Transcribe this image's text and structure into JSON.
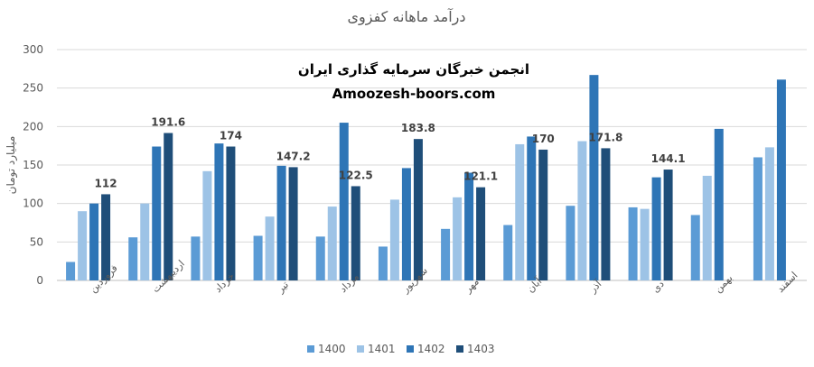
{
  "chart_data": {
    "type": "bar",
    "title": "درآمد ماهانه کفزوی",
    "ylabel": "میلیارد تومان",
    "ylim": [
      0,
      300
    ],
    "yticks": [
      0,
      50,
      100,
      150,
      200,
      250,
      300
    ],
    "grid": true,
    "legend_position": "bottom",
    "categories": [
      "فروردین",
      "اردیبهشت",
      "خرداد",
      "تیر",
      "مرداد",
      "شهریور",
      "مهر",
      "آبان",
      "آذر",
      "دی",
      "بهمن",
      "اسفند"
    ],
    "series": [
      {
        "name": "1400",
        "color": "#5b9bd5",
        "values": [
          24,
          56,
          57,
          58,
          57,
          44,
          67,
          72,
          97,
          95,
          85,
          160
        ]
      },
      {
        "name": "1401",
        "color": "#9dc3e6",
        "values": [
          90,
          100,
          142,
          83,
          96,
          105,
          108,
          177,
          181,
          93,
          136,
          173
        ]
      },
      {
        "name": "1402",
        "color": "#2e75b6",
        "values": [
          100,
          174,
          178,
          149,
          205,
          146,
          140,
          187,
          267,
          134,
          197,
          261
        ]
      },
      {
        "name": "1403",
        "color": "#1f4e79",
        "values": [
          112,
          191.6,
          174,
          147.2,
          122.5,
          183.8,
          121.1,
          170,
          171.8,
          144.1,
          null,
          null
        ]
      }
    ],
    "data_labels": [
      "112",
      "191.6",
      "174",
      "147.2",
      "122.5",
      "183.8",
      "121.1",
      "170",
      "171.8",
      "144.1"
    ]
  },
  "watermark": {
    "line1": "انجمن خبرگان سرمایه گذاری ایران",
    "line2": "Amoozesh-boors.com"
  }
}
